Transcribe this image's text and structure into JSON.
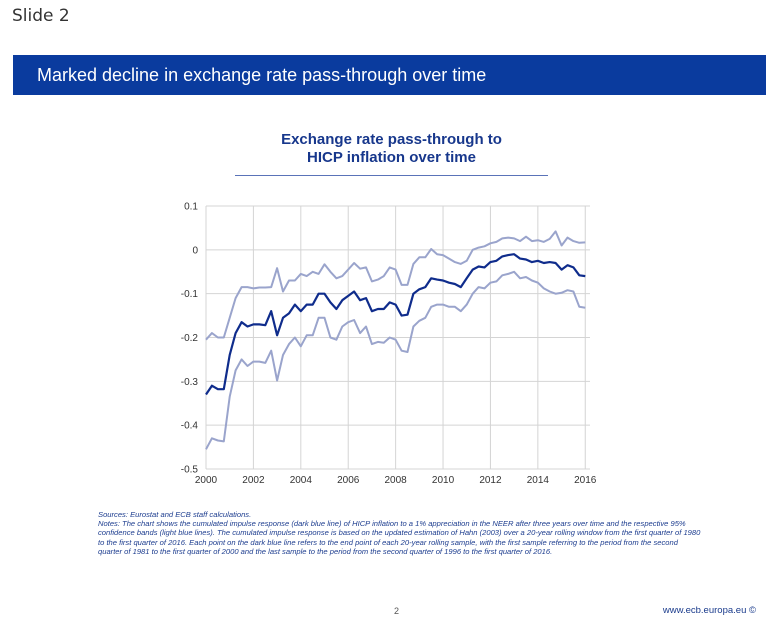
{
  "slide": {
    "label": "Slide 2"
  },
  "banner": {
    "title": "Marked decline in exchange rate pass-through over time"
  },
  "chart_data": {
    "type": "line",
    "title_line1": "Exchange rate pass-through to",
    "title_line2": "HICP inflation over time",
    "xlabel": "",
    "ylabel": "",
    "xlim": [
      2000,
      2016.2
    ],
    "ylim": [
      -0.5,
      0.1
    ],
    "xticks": [
      2000,
      2002,
      2004,
      2006,
      2008,
      2010,
      2012,
      2014,
      2016
    ],
    "xtick_labels": [
      "2000",
      "2002",
      "2004",
      "2006",
      "2008",
      "2010",
      "2012",
      "2014",
      "2016"
    ],
    "yticks": [
      0.1,
      0,
      -0.1,
      -0.2,
      -0.3,
      -0.4,
      -0.5
    ],
    "ytick_labels": [
      "0.1",
      "0",
      "-0.1",
      "-0.2",
      "-0.3",
      "-0.4",
      "-0.5"
    ],
    "x": [
      2000.0,
      2000.25,
      2000.5,
      2000.75,
      2001.0,
      2001.25,
      2001.5,
      2001.75,
      2002.0,
      2002.25,
      2002.5,
      2002.75,
      2003.0,
      2003.25,
      2003.5,
      2003.75,
      2004.0,
      2004.25,
      2004.5,
      2004.75,
      2005.0,
      2005.25,
      2005.5,
      2005.75,
      2006.0,
      2006.25,
      2006.5,
      2006.75,
      2007.0,
      2007.25,
      2007.5,
      2007.75,
      2008.0,
      2008.25,
      2008.5,
      2008.75,
      2009.0,
      2009.25,
      2009.5,
      2009.75,
      2010.0,
      2010.25,
      2010.5,
      2010.75,
      2011.0,
      2011.25,
      2011.5,
      2011.75,
      2012.0,
      2012.25,
      2012.5,
      2012.75,
      2013.0,
      2013.25,
      2013.5,
      2013.75,
      2014.0,
      2014.25,
      2014.5,
      2014.75,
      2015.0,
      2015.25,
      2015.5,
      2015.75,
      2016.0
    ],
    "series": [
      {
        "name": "Upper 95% confidence band",
        "color": "#9aa4cc",
        "values": [
          -0.205,
          -0.19,
          -0.2,
          -0.2,
          -0.155,
          -0.11,
          -0.085,
          -0.085,
          -0.088,
          -0.086,
          -0.086,
          -0.085,
          -0.042,
          -0.095,
          -0.07,
          -0.07,
          -0.055,
          -0.06,
          -0.05,
          -0.055,
          -0.033,
          -0.05,
          -0.065,
          -0.06,
          -0.045,
          -0.03,
          -0.043,
          -0.04,
          -0.072,
          -0.068,
          -0.06,
          -0.04,
          -0.045,
          -0.08,
          -0.08,
          -0.032,
          -0.017,
          -0.017,
          0.002,
          -0.01,
          -0.012,
          -0.02,
          -0.028,
          -0.032,
          -0.025,
          0.0,
          0.005,
          0.008,
          0.015,
          0.018,
          0.026,
          0.028,
          0.026,
          0.02,
          0.03,
          0.02,
          0.022,
          0.018,
          0.025,
          0.042,
          0.01,
          0.028,
          0.02,
          0.016,
          0.017
        ]
      },
      {
        "name": "Cumulated impulse response",
        "color": "#0f2c8c",
        "values": [
          -0.33,
          -0.31,
          -0.318,
          -0.318,
          -0.24,
          -0.19,
          -0.165,
          -0.175,
          -0.17,
          -0.17,
          -0.172,
          -0.14,
          -0.195,
          -0.155,
          -0.145,
          -0.125,
          -0.14,
          -0.125,
          -0.125,
          -0.1,
          -0.1,
          -0.12,
          -0.135,
          -0.115,
          -0.105,
          -0.095,
          -0.115,
          -0.11,
          -0.14,
          -0.135,
          -0.135,
          -0.12,
          -0.125,
          -0.15,
          -0.148,
          -0.1,
          -0.09,
          -0.085,
          -0.065,
          -0.068,
          -0.07,
          -0.075,
          -0.078,
          -0.085,
          -0.065,
          -0.045,
          -0.038,
          -0.04,
          -0.028,
          -0.025,
          -0.015,
          -0.012,
          -0.01,
          -0.02,
          -0.022,
          -0.028,
          -0.025,
          -0.03,
          -0.028,
          -0.03,
          -0.045,
          -0.035,
          -0.04,
          -0.058,
          -0.06
        ]
      },
      {
        "name": "Lower 95% confidence band",
        "color": "#9aa4cc",
        "values": [
          -0.455,
          -0.43,
          -0.435,
          -0.437,
          -0.335,
          -0.275,
          -0.25,
          -0.265,
          -0.255,
          -0.255,
          -0.258,
          -0.23,
          -0.298,
          -0.24,
          -0.215,
          -0.2,
          -0.22,
          -0.195,
          -0.195,
          -0.155,
          -0.155,
          -0.2,
          -0.205,
          -0.175,
          -0.165,
          -0.16,
          -0.19,
          -0.175,
          -0.215,
          -0.21,
          -0.212,
          -0.2,
          -0.205,
          -0.23,
          -0.233,
          -0.175,
          -0.162,
          -0.155,
          -0.13,
          -0.125,
          -0.125,
          -0.13,
          -0.13,
          -0.14,
          -0.125,
          -0.1,
          -0.085,
          -0.088,
          -0.075,
          -0.072,
          -0.058,
          -0.055,
          -0.05,
          -0.065,
          -0.062,
          -0.07,
          -0.075,
          -0.088,
          -0.095,
          -0.1,
          -0.098,
          -0.092,
          -0.095,
          -0.13,
          -0.132
        ]
      }
    ]
  },
  "notes": {
    "sources": "Sources: Eurostat and ECB staff calculations.",
    "text": "Notes: The chart shows the cumulated impulse response (dark blue line) of HICP inflation to a 1% appreciation in the NEER after three years over time and the respective 95% confidence bands (light blue lines). The cumulated impulse response is based on the updated estimation of Hahn (2003) over a 20-year rolling window from the first quarter of 1980 to the first quarter of 2016. Each point on the dark blue line refers to the end point of each 20-year rolling sample, with the first sample referring to the period from the second quarter of 1981 to the first quarter of 2000 and the last sample to the period from the second quarter of 1996 to the first quarter of 2016."
  },
  "footer": {
    "page_number": "2",
    "url": "www.ecb.europa.eu ©"
  },
  "colors": {
    "banner": "#0a3b9e",
    "title": "#17378c",
    "main_line": "#0f2c8c",
    "band_line": "#9aa4cc"
  }
}
